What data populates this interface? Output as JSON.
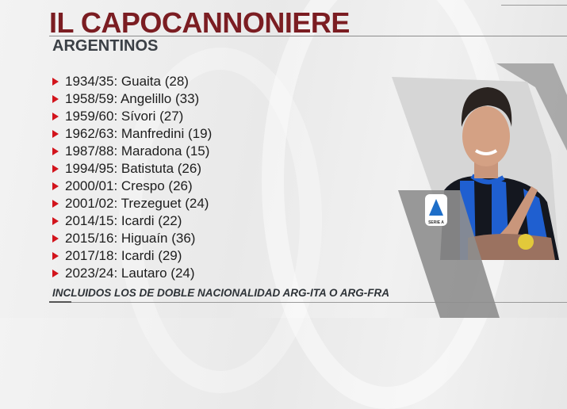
{
  "header": {
    "title": "IL CAPOCANNONIERE",
    "subtitle": "ARGENTINOS"
  },
  "scorers": [
    {
      "season": "1934/35",
      "player": "Guaita",
      "goals": 28,
      "text": "1934/35: Guaita (28)"
    },
    {
      "season": "1958/59",
      "player": "Angelillo",
      "goals": 33,
      "text": "1958/59: Angelillo (33)"
    },
    {
      "season": "1959/60",
      "player": "Sívori",
      "goals": 27,
      "text": "1959/60: Sívori (27)"
    },
    {
      "season": "1962/63",
      "player": "Manfredini",
      "goals": 19,
      "text": "1962/63: Manfredini (19)"
    },
    {
      "season": "1987/88",
      "player": "Maradona",
      "goals": 15,
      "text": "1987/88: Maradona (15)"
    },
    {
      "season": "1994/95",
      "player": "Batistuta",
      "goals": 26,
      "text": "1994/95: Batistuta (26)"
    },
    {
      "season": "2000/01",
      "player": "Crespo",
      "goals": 26,
      "text": "2000/01: Crespo (26)"
    },
    {
      "season": "2001/02",
      "player": "Trezeguet",
      "goals": 24,
      "text": "2001/02: Trezeguet (24)"
    },
    {
      "season": "2014/15",
      "player": "Icardi",
      "goals": 22,
      "text": "2014/15: Icardi (22)"
    },
    {
      "season": "2015/16",
      "player": "Higuaín",
      "goals": 36,
      "text": "2015/16: Higuaín (36)"
    },
    {
      "season": "2017/18",
      "player": "Icardi",
      "goals": 29,
      "text": "2017/18: Icardi (29)"
    },
    {
      "season": "2023/24",
      "player": "Lautaro",
      "goals": 24,
      "text": "2023/24: Lautaro (24)"
    }
  ],
  "footer": {
    "note": "INCLUIDOS LOS DE DOBLE NACIONALIDAD ARG-ITA O ARG-FRA"
  },
  "badge": {
    "label": "SERIE A"
  },
  "colors": {
    "title": "#7b1d22",
    "bullet": "#d2141c",
    "subtitle": "#3b4046",
    "jersey_blue": "#1f5fd0"
  }
}
